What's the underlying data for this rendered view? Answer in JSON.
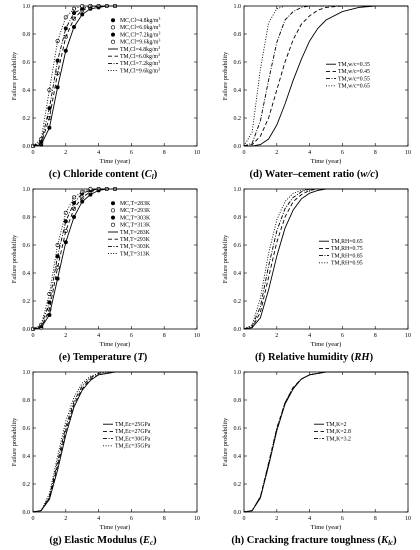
{
  "figure": {
    "panels": [
      {
        "id": "c",
        "caption_bold": "(c) Chloride content (",
        "caption_italic": "C",
        "caption_sub": "l",
        "caption_end": ")",
        "xlabel": "Time (year)",
        "ylabel": "Failure probability",
        "legend_pos": "center-right"
      },
      {
        "id": "d",
        "caption_bold": "(d) Water–cement ratio (",
        "caption_italic": "w/c",
        "caption_sub": "",
        "caption_end": ")",
        "xlabel": "Time (year)",
        "ylabel": "Failure probability",
        "legend_pos": "center-right"
      },
      {
        "id": "e",
        "caption_bold": "(e) Temperature (",
        "caption_italic": "T",
        "caption_sub": "",
        "caption_end": ")",
        "xlabel": "Time (year)",
        "ylabel": "Failure probability",
        "legend_pos": "center-right"
      },
      {
        "id": "f",
        "caption_bold": "(f) Relative humidity (",
        "caption_italic": "RH",
        "caption_sub": "",
        "caption_end": ")",
        "xlabel": "Time (year)",
        "ylabel": "Failure probability",
        "legend_pos": "center-right"
      },
      {
        "id": "g",
        "caption_bold": "(g) Elastic Modulus (",
        "caption_italic": "E",
        "caption_sub": "c",
        "caption_end": ")",
        "xlabel": "Time (year)",
        "ylabel": "Failure probability",
        "legend_pos": "center-right"
      },
      {
        "id": "h",
        "caption_bold": "(h) Cracking fracture toughness (",
        "caption_italic": "K",
        "caption_sub": "lc",
        "caption_end": ")",
        "xlabel": "Time (year)",
        "ylabel": "Failure probability",
        "legend_pos": "center-right"
      }
    ]
  },
  "chart_data": [
    {
      "type": "line",
      "title": "",
      "xlabel": "Time (year)",
      "ylabel": "Failure probability",
      "xlim": [
        0,
        10
      ],
      "ylim": [
        0,
        1.0
      ],
      "xticks": [
        "0",
        "2",
        "4",
        "6",
        "8",
        "10"
      ],
      "yticks": [
        "0.0",
        "0.2",
        "0.4",
        "0.6",
        "0.8",
        "1.0"
      ],
      "x": [
        0,
        0.5,
        1,
        1.5,
        2,
        2.5,
        3,
        3.5,
        4,
        4.5,
        5,
        6,
        7,
        8,
        9,
        10
      ],
      "series": [
        {
          "name": "MC,Cl=4.8kg/m^3",
          "style": "marker-filled-circle",
          "values": [
            0,
            0.01,
            0.13,
            0.42,
            0.68,
            0.85,
            0.94,
            0.98,
            0.99,
            1.0,
            1.0,
            1.0,
            1.0,
            1.0,
            1.0,
            1.0
          ]
        },
        {
          "name": "MC,Cl=6.0kg/m^3",
          "style": "marker-open-circle",
          "values": [
            0,
            0.02,
            0.2,
            0.52,
            0.78,
            0.91,
            0.97,
            0.99,
            1.0,
            1.0,
            1.0,
            1.0,
            1.0,
            1.0,
            1.0,
            1.0
          ]
        },
        {
          "name": "MC,Cl=7.2kg/m^3",
          "style": "marker-filled-circle",
          "values": [
            0,
            0.03,
            0.27,
            0.61,
            0.84,
            0.95,
            0.98,
            1.0,
            1.0,
            1.0,
            1.0,
            1.0,
            1.0,
            1.0,
            1.0,
            1.0
          ]
        },
        {
          "name": "MC,Cl=9.6kg/m^3",
          "style": "marker-open-circle",
          "values": [
            0,
            0.05,
            0.4,
            0.75,
            0.92,
            0.98,
            1.0,
            1.0,
            1.0,
            1.0,
            1.0,
            1.0,
            1.0,
            1.0,
            1.0,
            1.0
          ]
        },
        {
          "name": "TM,Cl=4.8kg/m^3",
          "style": "solid",
          "values": [
            0,
            0.01,
            0.13,
            0.42,
            0.68,
            0.85,
            0.94,
            0.98,
            0.99,
            1.0,
            1.0,
            1.0,
            1.0,
            1.0,
            1.0,
            1.0
          ]
        },
        {
          "name": "TM,Cl=6.0kg/m^3",
          "style": "dash",
          "values": [
            0,
            0.02,
            0.2,
            0.52,
            0.78,
            0.91,
            0.97,
            0.99,
            1.0,
            1.0,
            1.0,
            1.0,
            1.0,
            1.0,
            1.0,
            1.0
          ]
        },
        {
          "name": "TM,Cl=7.2kg/m^3",
          "style": "dashdot",
          "values": [
            0,
            0.03,
            0.27,
            0.61,
            0.84,
            0.95,
            0.98,
            1.0,
            1.0,
            1.0,
            1.0,
            1.0,
            1.0,
            1.0,
            1.0,
            1.0
          ]
        },
        {
          "name": "TM,Cl=9.6kg/m^3",
          "style": "dot",
          "values": [
            0,
            0.05,
            0.4,
            0.75,
            0.92,
            0.98,
            1.0,
            1.0,
            1.0,
            1.0,
            1.0,
            1.0,
            1.0,
            1.0,
            1.0,
            1.0
          ]
        }
      ],
      "legend_labels": [
        {
          "prefix": "MC,Cl=4.8kg/m",
          "sup": "3"
        },
        {
          "prefix": "MC,Cl=6.0kg/m",
          "sup": "3"
        },
        {
          "prefix": "MC,Cl=7.2kg/m",
          "sup": "3"
        },
        {
          "prefix": "MC,Cl=9.6kg/m",
          "sup": "3"
        },
        {
          "prefix": "TM,Cl=4.8kg/m",
          "sup": "3"
        },
        {
          "prefix": "TM,Cl=6.0kg/m",
          "sup": "3"
        },
        {
          "prefix": "TM,Cl=7.2kg/m",
          "sup": "3"
        },
        {
          "prefix": "TM,Cl=9.6kg/m",
          "sup": "3"
        }
      ],
      "grid": false,
      "legend": "center-right"
    },
    {
      "type": "line",
      "title": "",
      "xlabel": "Time (year)",
      "ylabel": "Failure probability",
      "xlim": [
        0,
        10
      ],
      "ylim": [
        0,
        1.0
      ],
      "xticks": [
        "0",
        "2",
        "4",
        "6",
        "8",
        "10"
      ],
      "yticks": [
        "0.0",
        "0.2",
        "0.4",
        "0.6",
        "0.8",
        "1.0"
      ],
      "x": [
        0,
        0.5,
        1,
        1.5,
        2,
        2.5,
        3,
        3.5,
        4,
        4.5,
        5,
        6,
        7,
        8,
        9,
        10
      ],
      "series": [
        {
          "name": "TM,w/c=0.35",
          "style": "solid",
          "values": [
            0,
            0,
            0.01,
            0.05,
            0.15,
            0.3,
            0.47,
            0.62,
            0.75,
            0.84,
            0.9,
            0.96,
            0.99,
            1.0,
            1.0,
            1.0
          ]
        },
        {
          "name": "TM,w/c=0.45",
          "style": "dash",
          "values": [
            0,
            0.01,
            0.07,
            0.2,
            0.4,
            0.6,
            0.76,
            0.87,
            0.93,
            0.97,
            0.99,
            1.0,
            1.0,
            1.0,
            1.0,
            1.0
          ]
        },
        {
          "name": "TM,w/c=0.55",
          "style": "dashdot",
          "values": [
            0,
            0.02,
            0.18,
            0.47,
            0.74,
            0.9,
            0.96,
            0.99,
            1.0,
            1.0,
            1.0,
            1.0,
            1.0,
            1.0,
            1.0,
            1.0
          ]
        },
        {
          "name": "TM,w/c=0.65",
          "style": "dot",
          "values": [
            0,
            0.1,
            0.55,
            0.88,
            0.98,
            1.0,
            1.0,
            1.0,
            1.0,
            1.0,
            1.0,
            1.0,
            1.0,
            1.0,
            1.0,
            1.0
          ]
        }
      ],
      "grid": false,
      "legend": "center-right"
    },
    {
      "type": "line",
      "title": "",
      "xlabel": "Time (year)",
      "ylabel": "Failure probability",
      "xlim": [
        0,
        10
      ],
      "ylim": [
        0,
        1.0
      ],
      "xticks": [
        "0",
        "2",
        "4",
        "6",
        "8",
        "10"
      ],
      "yticks": [
        "0.0",
        "0.2",
        "0.4",
        "0.6",
        "0.8",
        "1.0"
      ],
      "x": [
        0,
        0.5,
        1,
        1.5,
        2,
        2.5,
        3,
        3.5,
        4,
        4.5,
        5,
        6,
        7,
        8,
        9,
        10
      ],
      "series": [
        {
          "name": "MC,T=283K",
          "style": "marker-filled-circle",
          "values": [
            0,
            0.01,
            0.1,
            0.36,
            0.62,
            0.8,
            0.91,
            0.96,
            0.99,
            1.0,
            1.0,
            1.0,
            1.0,
            1.0,
            1.0,
            1.0
          ]
        },
        {
          "name": "MC,T=293K",
          "style": "marker-open-circle",
          "values": [
            0,
            0.01,
            0.14,
            0.44,
            0.7,
            0.86,
            0.94,
            0.98,
            1.0,
            1.0,
            1.0,
            1.0,
            1.0,
            1.0,
            1.0,
            1.0
          ]
        },
        {
          "name": "MC,T=303K",
          "style": "marker-filled-circle",
          "values": [
            0,
            0.02,
            0.19,
            0.52,
            0.77,
            0.9,
            0.97,
            0.99,
            1.0,
            1.0,
            1.0,
            1.0,
            1.0,
            1.0,
            1.0,
            1.0
          ]
        },
        {
          "name": "MC,T=313K",
          "style": "marker-open-circle",
          "values": [
            0,
            0.03,
            0.25,
            0.6,
            0.83,
            0.94,
            0.98,
            1.0,
            1.0,
            1.0,
            1.0,
            1.0,
            1.0,
            1.0,
            1.0,
            1.0
          ]
        },
        {
          "name": "TM,T=283K",
          "style": "solid",
          "values": [
            0,
            0.01,
            0.1,
            0.36,
            0.62,
            0.8,
            0.91,
            0.96,
            0.99,
            1.0,
            1.0,
            1.0,
            1.0,
            1.0,
            1.0,
            1.0
          ]
        },
        {
          "name": "TM,T=293K",
          "style": "dash",
          "values": [
            0,
            0.01,
            0.14,
            0.44,
            0.7,
            0.86,
            0.94,
            0.98,
            1.0,
            1.0,
            1.0,
            1.0,
            1.0,
            1.0,
            1.0,
            1.0
          ]
        },
        {
          "name": "TM,T=303K",
          "style": "dashdot",
          "values": [
            0,
            0.02,
            0.19,
            0.52,
            0.77,
            0.9,
            0.97,
            0.99,
            1.0,
            1.0,
            1.0,
            1.0,
            1.0,
            1.0,
            1.0,
            1.0
          ]
        },
        {
          "name": "TM,T=313K",
          "style": "dot",
          "values": [
            0,
            0.03,
            0.25,
            0.6,
            0.83,
            0.94,
            0.98,
            1.0,
            1.0,
            1.0,
            1.0,
            1.0,
            1.0,
            1.0,
            1.0,
            1.0
          ]
        }
      ],
      "grid": false,
      "legend": "center-right"
    },
    {
      "type": "line",
      "title": "",
      "xlabel": "Time (year)",
      "ylabel": "Failure probability",
      "xlim": [
        0,
        10
      ],
      "ylim": [
        0,
        1.0
      ],
      "xticks": [
        "0",
        "2",
        "4",
        "6",
        "8",
        "10"
      ],
      "yticks": [
        "0.0",
        "0.2",
        "0.4",
        "0.6",
        "0.8",
        "1.0"
      ],
      "x": [
        0,
        0.5,
        1,
        1.5,
        2,
        2.5,
        3,
        3.5,
        4,
        4.5,
        5,
        6,
        7,
        8,
        9,
        10
      ],
      "series": [
        {
          "name": "TM,RH=0.65",
          "style": "solid",
          "values": [
            0,
            0.01,
            0.08,
            0.28,
            0.52,
            0.72,
            0.85,
            0.93,
            0.97,
            0.99,
            1.0,
            1.0,
            1.0,
            1.0,
            1.0,
            1.0
          ]
        },
        {
          "name": "TM,RH=0.75",
          "style": "dash",
          "values": [
            0,
            0.01,
            0.12,
            0.37,
            0.62,
            0.8,
            0.91,
            0.96,
            0.99,
            1.0,
            1.0,
            1.0,
            1.0,
            1.0,
            1.0,
            1.0
          ]
        },
        {
          "name": "TM,RH=0.85",
          "style": "dashdot",
          "values": [
            0,
            0.02,
            0.16,
            0.45,
            0.7,
            0.86,
            0.94,
            0.98,
            1.0,
            1.0,
            1.0,
            1.0,
            1.0,
            1.0,
            1.0,
            1.0
          ]
        },
        {
          "name": "TM,RH=0.95",
          "style": "dot",
          "values": [
            0,
            0.03,
            0.22,
            0.54,
            0.78,
            0.91,
            0.97,
            0.99,
            1.0,
            1.0,
            1.0,
            1.0,
            1.0,
            1.0,
            1.0,
            1.0
          ]
        }
      ],
      "grid": false,
      "legend": "center-right"
    },
    {
      "type": "line",
      "title": "",
      "xlabel": "Time (year)",
      "ylabel": "Failure probability",
      "xlim": [
        0,
        10
      ],
      "ylim": [
        0,
        1.0
      ],
      "xticks": [
        "0",
        "2",
        "4",
        "6",
        "8",
        "10"
      ],
      "yticks": [
        "0.0",
        "0.2",
        "0.4",
        "0.6",
        "0.8",
        "1.0"
      ],
      "x": [
        0,
        0.5,
        1,
        1.5,
        2,
        2.5,
        3,
        3.5,
        4,
        4.5,
        5,
        6,
        7,
        8,
        9,
        10
      ],
      "series": [
        {
          "name": "TM,Ec=25GPa",
          "style": "solid",
          "values": [
            0,
            0.01,
            0.09,
            0.3,
            0.55,
            0.75,
            0.87,
            0.94,
            0.98,
            0.99,
            1.0,
            1.0,
            1.0,
            1.0,
            1.0,
            1.0
          ]
        },
        {
          "name": "TM,Ec=27GPa",
          "style": "dash",
          "values": [
            0,
            0.01,
            0.1,
            0.33,
            0.58,
            0.77,
            0.88,
            0.95,
            0.98,
            0.99,
            1.0,
            1.0,
            1.0,
            1.0,
            1.0,
            1.0
          ]
        },
        {
          "name": "TM,Ec=30GPa",
          "style": "dashdot",
          "values": [
            0,
            0.01,
            0.11,
            0.36,
            0.61,
            0.79,
            0.9,
            0.96,
            0.99,
            1.0,
            1.0,
            1.0,
            1.0,
            1.0,
            1.0,
            1.0
          ]
        },
        {
          "name": "TM,Ec=35GPa",
          "style": "dot",
          "values": [
            0,
            0.01,
            0.13,
            0.4,
            0.65,
            0.82,
            0.92,
            0.97,
            0.99,
            1.0,
            1.0,
            1.0,
            1.0,
            1.0,
            1.0,
            1.0
          ]
        }
      ],
      "grid": false,
      "legend": "center-right"
    },
    {
      "type": "line",
      "title": "",
      "xlabel": "Time (year)",
      "ylabel": "Failure probability",
      "xlim": [
        0,
        10
      ],
      "ylim": [
        0,
        1.0
      ],
      "xticks": [
        "0",
        "2",
        "4",
        "6",
        "8",
        "10"
      ],
      "yticks": [
        "0.0",
        "0.2",
        "0.4",
        "0.6",
        "0.8",
        "1.0"
      ],
      "x": [
        0,
        0.5,
        1,
        1.5,
        2,
        2.5,
        3,
        3.5,
        4,
        4.5,
        5,
        6,
        7,
        8,
        9,
        10
      ],
      "series": [
        {
          "name": "TM,K=2",
          "style": "solid",
          "values": [
            0,
            0.01,
            0.1,
            0.33,
            0.58,
            0.77,
            0.88,
            0.95,
            0.98,
            0.99,
            1.0,
            1.0,
            1.0,
            1.0,
            1.0,
            1.0
          ]
        },
        {
          "name": "TM,K=2.8",
          "style": "dash",
          "values": [
            0,
            0.01,
            0.11,
            0.34,
            0.59,
            0.78,
            0.89,
            0.95,
            0.98,
            0.99,
            1.0,
            1.0,
            1.0,
            1.0,
            1.0,
            1.0
          ]
        },
        {
          "name": "TM,K=3.2",
          "style": "dashdot",
          "values": [
            0,
            0.01,
            0.11,
            0.35,
            0.6,
            0.78,
            0.89,
            0.95,
            0.98,
            0.99,
            1.0,
            1.0,
            1.0,
            1.0,
            1.0,
            1.0
          ]
        }
      ],
      "grid": false,
      "legend": "center-right"
    }
  ]
}
